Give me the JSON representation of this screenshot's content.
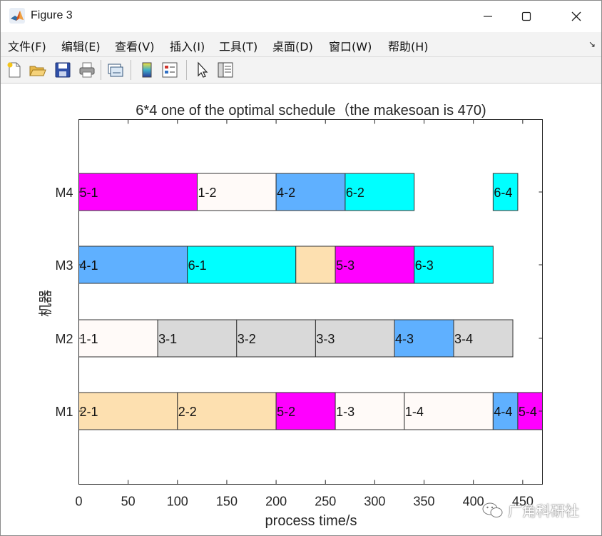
{
  "window": {
    "title": "Figure 3",
    "minimize_icon": "minimize-icon",
    "maximize_icon": "maximize-icon",
    "close_icon": "close-icon"
  },
  "menu": {
    "items": [
      "文件(F)",
      "编辑(E)",
      "查看(V)",
      "插入(I)",
      "工具(T)",
      "桌面(D)",
      "窗口(W)",
      "帮助(H)"
    ]
  },
  "toolbar": {
    "icons": [
      "new-figure-icon",
      "open-file-icon",
      "save-icon",
      "print-icon",
      "link-plot-icon",
      "colorbar-icon",
      "legend-icon",
      "pointer-icon",
      "property-inspector-icon"
    ]
  },
  "watermark": {
    "text": "广角科研社"
  },
  "chart_data": {
    "type": "gantt",
    "title": "6*4 one of the optimal schedule（the makesoan is 470)",
    "xlabel": "process time/s",
    "ylabel": "机器",
    "xlim": [
      0,
      470
    ],
    "xticks": [
      0,
      50,
      100,
      150,
      200,
      250,
      300,
      350,
      400,
      450
    ],
    "machines": [
      "M1",
      "M2",
      "M3",
      "M4"
    ],
    "colors": {
      "job1": "#fffaf8",
      "job2": "#fde0b0",
      "job3": "#d9d9d9",
      "job4": "#5fb0ff",
      "job5": "#ff00ff",
      "job6": "#00ffff"
    },
    "tasks": [
      {
        "machine": "M1",
        "label": "2-1",
        "start": 0,
        "end": 100,
        "job": "job2"
      },
      {
        "machine": "M1",
        "label": "2-2",
        "start": 100,
        "end": 200,
        "job": "job2"
      },
      {
        "machine": "M1",
        "label": "5-2",
        "start": 200,
        "end": 260,
        "job": "job5"
      },
      {
        "machine": "M1",
        "label": "1-3",
        "start": 260,
        "end": 330,
        "job": "job1"
      },
      {
        "machine": "M1",
        "label": "1-4",
        "start": 330,
        "end": 420,
        "job": "job1"
      },
      {
        "machine": "M1",
        "label": "4-4",
        "start": 420,
        "end": 445,
        "job": "job4"
      },
      {
        "machine": "M1",
        "label": "5-4",
        "start": 445,
        "end": 470,
        "job": "job5"
      },
      {
        "machine": "M2",
        "label": "1-1",
        "start": 0,
        "end": 80,
        "job": "job1"
      },
      {
        "machine": "M2",
        "label": "3-1",
        "start": 80,
        "end": 160,
        "job": "job3"
      },
      {
        "machine": "M2",
        "label": "3-2",
        "start": 160,
        "end": 240,
        "job": "job3"
      },
      {
        "machine": "M2",
        "label": "3-3",
        "start": 240,
        "end": 320,
        "job": "job3"
      },
      {
        "machine": "M2",
        "label": "4-3",
        "start": 320,
        "end": 380,
        "job": "job4"
      },
      {
        "machine": "M2",
        "label": "3-4",
        "start": 380,
        "end": 440,
        "job": "job3"
      },
      {
        "machine": "M3",
        "label": "4-1",
        "start": 0,
        "end": 110,
        "job": "job4"
      },
      {
        "machine": "M3",
        "label": "6-1",
        "start": 110,
        "end": 220,
        "job": "job6"
      },
      {
        "machine": "M3",
        "label": "",
        "start": 220,
        "end": 260,
        "job": "job2"
      },
      {
        "machine": "M3",
        "label": "5-3",
        "start": 260,
        "end": 340,
        "job": "job5"
      },
      {
        "machine": "M3",
        "label": "6-3",
        "start": 340,
        "end": 420,
        "job": "job6"
      },
      {
        "machine": "M4",
        "label": "5-1",
        "start": 0,
        "end": 120,
        "job": "job5"
      },
      {
        "machine": "M4",
        "label": "1-2",
        "start": 120,
        "end": 200,
        "job": "job1"
      },
      {
        "machine": "M4",
        "label": "4-2",
        "start": 200,
        "end": 270,
        "job": "job4"
      },
      {
        "machine": "M4",
        "label": "6-2",
        "start": 270,
        "end": 340,
        "job": "job6"
      },
      {
        "machine": "M4",
        "label": "6-4",
        "start": 420,
        "end": 445,
        "job": "job6"
      }
    ]
  }
}
